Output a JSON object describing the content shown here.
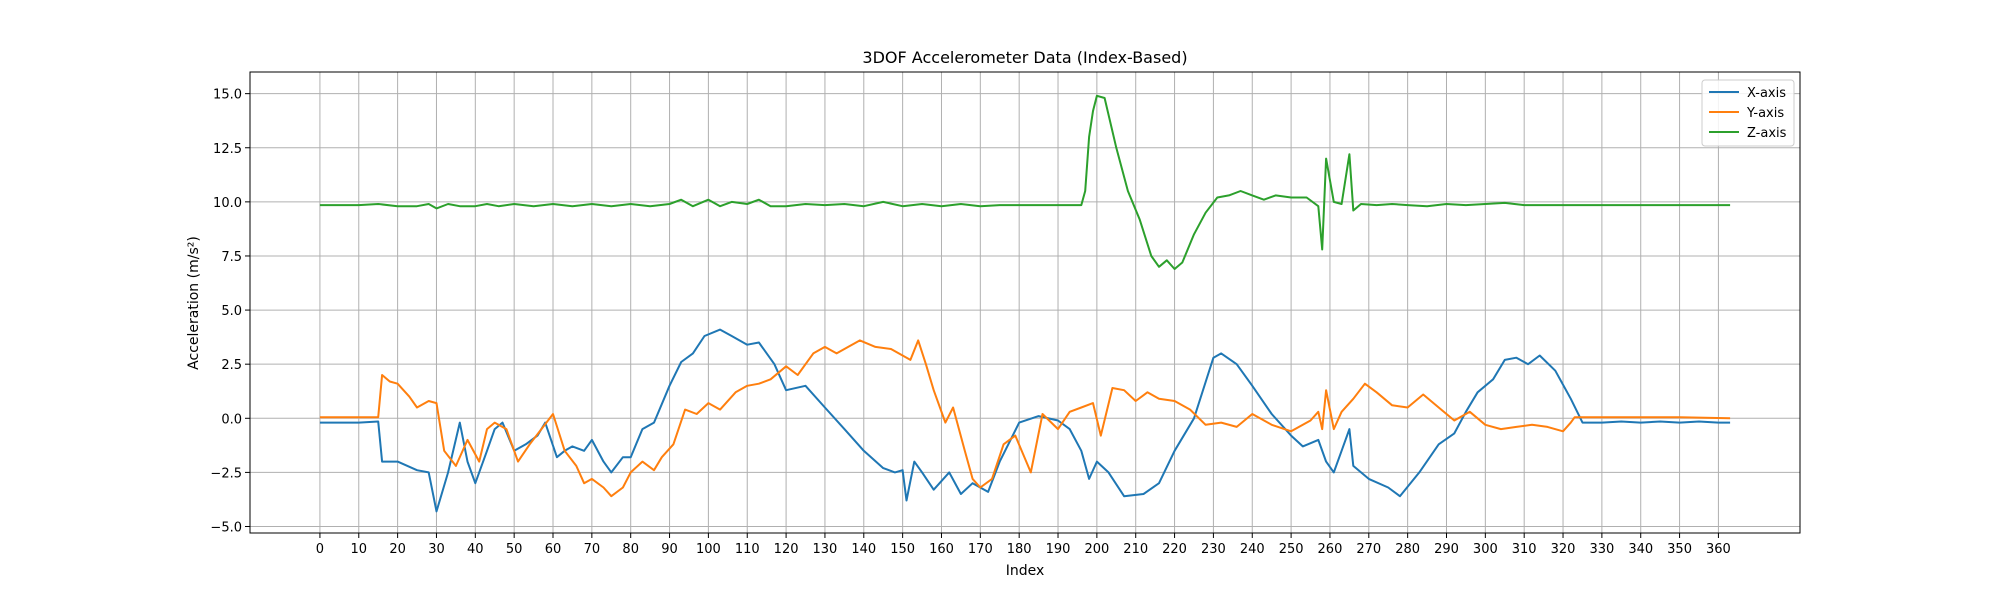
{
  "chart_data": {
    "type": "line",
    "title": "3DOF Accelerometer Data (Index-Based)",
    "xlabel": "Index",
    "ylabel": "Acceleration (m/s²)",
    "xlim": [
      -18,
      381
    ],
    "ylim": [
      -5.3,
      16.0
    ],
    "x_ticks": [
      0,
      10,
      20,
      30,
      40,
      50,
      60,
      70,
      80,
      90,
      100,
      110,
      120,
      130,
      140,
      150,
      160,
      170,
      180,
      190,
      200,
      210,
      220,
      230,
      240,
      250,
      260,
      270,
      280,
      290,
      300,
      310,
      320,
      330,
      340,
      350,
      360
    ],
    "y_ticks": [
      -5.0,
      -2.5,
      0.0,
      2.5,
      5.0,
      7.5,
      10.0,
      12.5,
      15.0
    ],
    "y_tick_labels": [
      "−5.0",
      "−2.5",
      "0.0",
      "2.5",
      "5.0",
      "7.5",
      "10.0",
      "12.5",
      "15.0"
    ],
    "grid": true,
    "legend_position": "upper right",
    "series": [
      {
        "name": "X-axis",
        "color": "#1f77b4",
        "points": [
          [
            0,
            -0.2
          ],
          [
            10,
            -0.2
          ],
          [
            15,
            -0.15
          ],
          [
            16,
            -2.0
          ],
          [
            20,
            -2.0
          ],
          [
            25,
            -2.4
          ],
          [
            28,
            -2.5
          ],
          [
            30,
            -4.3
          ],
          [
            33,
            -2.5
          ],
          [
            36,
            -0.2
          ],
          [
            38,
            -2.0
          ],
          [
            40,
            -3.0
          ],
          [
            43,
            -1.5
          ],
          [
            45,
            -0.5
          ],
          [
            47,
            -0.2
          ],
          [
            50,
            -1.5
          ],
          [
            53,
            -1.2
          ],
          [
            56,
            -0.8
          ],
          [
            58,
            -0.2
          ],
          [
            61,
            -1.8
          ],
          [
            63,
            -1.5
          ],
          [
            65,
            -1.3
          ],
          [
            68,
            -1.5
          ],
          [
            70,
            -1.0
          ],
          [
            73,
            -2.0
          ],
          [
            75,
            -2.5
          ],
          [
            78,
            -1.8
          ],
          [
            80,
            -1.8
          ],
          [
            83,
            -0.5
          ],
          [
            86,
            -0.2
          ],
          [
            90,
            1.5
          ],
          [
            93,
            2.6
          ],
          [
            96,
            3.0
          ],
          [
            99,
            3.8
          ],
          [
            103,
            4.1
          ],
          [
            106,
            3.8
          ],
          [
            110,
            3.4
          ],
          [
            113,
            3.5
          ],
          [
            117,
            2.5
          ],
          [
            120,
            1.3
          ],
          [
            125,
            1.5
          ],
          [
            130,
            0.5
          ],
          [
            135,
            -0.5
          ],
          [
            140,
            -1.5
          ],
          [
            145,
            -2.3
          ],
          [
            148,
            -2.5
          ],
          [
            150,
            -2.4
          ],
          [
            151,
            -3.8
          ],
          [
            153,
            -2.0
          ],
          [
            155,
            -2.5
          ],
          [
            158,
            -3.3
          ],
          [
            162,
            -2.5
          ],
          [
            165,
            -3.5
          ],
          [
            168,
            -3.0
          ],
          [
            172,
            -3.4
          ],
          [
            175,
            -2.0
          ],
          [
            180,
            -0.2
          ],
          [
            185,
            0.1
          ],
          [
            190,
            -0.1
          ],
          [
            193,
            -0.5
          ],
          [
            196,
            -1.5
          ],
          [
            198,
            -2.8
          ],
          [
            200,
            -2.0
          ],
          [
            203,
            -2.5
          ],
          [
            207,
            -3.6
          ],
          [
            212,
            -3.5
          ],
          [
            216,
            -3.0
          ],
          [
            220,
            -1.5
          ],
          [
            225,
            0.0
          ],
          [
            230,
            2.8
          ],
          [
            232,
            3.0
          ],
          [
            236,
            2.5
          ],
          [
            240,
            1.5
          ],
          [
            245,
            0.2
          ],
          [
            250,
            -0.8
          ],
          [
            253,
            -1.3
          ],
          [
            257,
            -1.0
          ],
          [
            259,
            -2.0
          ],
          [
            261,
            -2.5
          ],
          [
            263,
            -1.5
          ],
          [
            265,
            -0.5
          ],
          [
            266,
            -2.2
          ],
          [
            270,
            -2.8
          ],
          [
            275,
            -3.2
          ],
          [
            278,
            -3.6
          ],
          [
            283,
            -2.5
          ],
          [
            288,
            -1.2
          ],
          [
            292,
            -0.7
          ],
          [
            295,
            0.3
          ],
          [
            298,
            1.2
          ],
          [
            302,
            1.8
          ],
          [
            305,
            2.7
          ],
          [
            308,
            2.8
          ],
          [
            311,
            2.5
          ],
          [
            314,
            2.9
          ],
          [
            318,
            2.2
          ],
          [
            322,
            0.9
          ],
          [
            325,
            -0.2
          ],
          [
            330,
            -0.2
          ],
          [
            335,
            -0.15
          ],
          [
            340,
            -0.2
          ],
          [
            345,
            -0.15
          ],
          [
            350,
            -0.2
          ],
          [
            355,
            -0.15
          ],
          [
            360,
            -0.2
          ],
          [
            363,
            -0.2
          ]
        ]
      },
      {
        "name": "Y-axis",
        "color": "#ff7f0e",
        "points": [
          [
            0,
            0.05
          ],
          [
            10,
            0.05
          ],
          [
            15,
            0.05
          ],
          [
            16,
            2.0
          ],
          [
            18,
            1.7
          ],
          [
            20,
            1.6
          ],
          [
            23,
            1.0
          ],
          [
            25,
            0.5
          ],
          [
            28,
            0.8
          ],
          [
            30,
            0.7
          ],
          [
            32,
            -1.5
          ],
          [
            35,
            -2.2
          ],
          [
            38,
            -1.0
          ],
          [
            41,
            -2.0
          ],
          [
            43,
            -0.5
          ],
          [
            45,
            -0.2
          ],
          [
            48,
            -0.5
          ],
          [
            51,
            -2.0
          ],
          [
            54,
            -1.2
          ],
          [
            57,
            -0.5
          ],
          [
            60,
            0.2
          ],
          [
            63,
            -1.5
          ],
          [
            66,
            -2.2
          ],
          [
            68,
            -3.0
          ],
          [
            70,
            -2.8
          ],
          [
            73,
            -3.2
          ],
          [
            75,
            -3.6
          ],
          [
            78,
            -3.2
          ],
          [
            80,
            -2.5
          ],
          [
            83,
            -2.0
          ],
          [
            86,
            -2.4
          ],
          [
            88,
            -1.8
          ],
          [
            91,
            -1.2
          ],
          [
            94,
            0.4
          ],
          [
            97,
            0.2
          ],
          [
            100,
            0.7
          ],
          [
            103,
            0.4
          ],
          [
            107,
            1.2
          ],
          [
            110,
            1.5
          ],
          [
            113,
            1.6
          ],
          [
            116,
            1.8
          ],
          [
            120,
            2.4
          ],
          [
            123,
            2.0
          ],
          [
            127,
            3.0
          ],
          [
            130,
            3.3
          ],
          [
            133,
            3.0
          ],
          [
            136,
            3.3
          ],
          [
            139,
            3.6
          ],
          [
            143,
            3.3
          ],
          [
            147,
            3.2
          ],
          [
            150,
            2.9
          ],
          [
            152,
            2.7
          ],
          [
            154,
            3.6
          ],
          [
            156,
            2.5
          ],
          [
            158,
            1.3
          ],
          [
            161,
            -0.2
          ],
          [
            163,
            0.5
          ],
          [
            166,
            -1.5
          ],
          [
            168,
            -2.8
          ],
          [
            170,
            -3.2
          ],
          [
            173,
            -2.8
          ],
          [
            176,
            -1.2
          ],
          [
            179,
            -0.8
          ],
          [
            183,
            -2.5
          ],
          [
            186,
            0.2
          ],
          [
            190,
            -0.5
          ],
          [
            193,
            0.3
          ],
          [
            196,
            0.5
          ],
          [
            199,
            0.7
          ],
          [
            201,
            -0.8
          ],
          [
            204,
            1.4
          ],
          [
            207,
            1.3
          ],
          [
            210,
            0.8
          ],
          [
            213,
            1.2
          ],
          [
            216,
            0.9
          ],
          [
            220,
            0.8
          ],
          [
            224,
            0.4
          ],
          [
            228,
            -0.3
          ],
          [
            232,
            -0.2
          ],
          [
            236,
            -0.4
          ],
          [
            240,
            0.2
          ],
          [
            245,
            -0.3
          ],
          [
            250,
            -0.6
          ],
          [
            255,
            -0.1
          ],
          [
            257,
            0.3
          ],
          [
            258,
            -0.5
          ],
          [
            259,
            1.3
          ],
          [
            261,
            -0.5
          ],
          [
            263,
            0.3
          ],
          [
            266,
            0.9
          ],
          [
            269,
            1.6
          ],
          [
            272,
            1.2
          ],
          [
            276,
            0.6
          ],
          [
            280,
            0.5
          ],
          [
            284,
            1.1
          ],
          [
            288,
            0.5
          ],
          [
            292,
            -0.1
          ],
          [
            296,
            0.3
          ],
          [
            300,
            -0.3
          ],
          [
            304,
            -0.5
          ],
          [
            308,
            -0.4
          ],
          [
            312,
            -0.3
          ],
          [
            316,
            -0.4
          ],
          [
            320,
            -0.6
          ],
          [
            322,
            -0.2
          ],
          [
            323,
            0.05
          ],
          [
            330,
            0.05
          ],
          [
            340,
            0.05
          ],
          [
            350,
            0.05
          ],
          [
            363,
            0.0
          ]
        ]
      },
      {
        "name": "Z-axis",
        "color": "#2ca02c",
        "points": [
          [
            0,
            9.85
          ],
          [
            10,
            9.85
          ],
          [
            15,
            9.9
          ],
          [
            20,
            9.8
          ],
          [
            25,
            9.8
          ],
          [
            28,
            9.9
          ],
          [
            30,
            9.7
          ],
          [
            33,
            9.9
          ],
          [
            36,
            9.8
          ],
          [
            40,
            9.8
          ],
          [
            43,
            9.9
          ],
          [
            46,
            9.8
          ],
          [
            50,
            9.9
          ],
          [
            55,
            9.8
          ],
          [
            60,
            9.9
          ],
          [
            65,
            9.8
          ],
          [
            70,
            9.9
          ],
          [
            75,
            9.8
          ],
          [
            80,
            9.9
          ],
          [
            85,
            9.8
          ],
          [
            90,
            9.9
          ],
          [
            93,
            10.1
          ],
          [
            96,
            9.8
          ],
          [
            100,
            10.1
          ],
          [
            103,
            9.8
          ],
          [
            106,
            10.0
          ],
          [
            110,
            9.9
          ],
          [
            113,
            10.1
          ],
          [
            116,
            9.8
          ],
          [
            120,
            9.8
          ],
          [
            125,
            9.9
          ],
          [
            130,
            9.85
          ],
          [
            135,
            9.9
          ],
          [
            140,
            9.8
          ],
          [
            145,
            10.0
          ],
          [
            150,
            9.8
          ],
          [
            155,
            9.9
          ],
          [
            160,
            9.8
          ],
          [
            165,
            9.9
          ],
          [
            170,
            9.8
          ],
          [
            175,
            9.85
          ],
          [
            180,
            9.85
          ],
          [
            190,
            9.85
          ],
          [
            196,
            9.85
          ],
          [
            197,
            10.5
          ],
          [
            198,
            13.0
          ],
          [
            199,
            14.2
          ],
          [
            200,
            14.9
          ],
          [
            202,
            14.8
          ],
          [
            205,
            12.5
          ],
          [
            208,
            10.5
          ],
          [
            211,
            9.2
          ],
          [
            214,
            7.5
          ],
          [
            216,
            7.0
          ],
          [
            218,
            7.3
          ],
          [
            220,
            6.9
          ],
          [
            222,
            7.2
          ],
          [
            225,
            8.5
          ],
          [
            228,
            9.5
          ],
          [
            231,
            10.2
          ],
          [
            234,
            10.3
          ],
          [
            237,
            10.5
          ],
          [
            240,
            10.3
          ],
          [
            243,
            10.1
          ],
          [
            246,
            10.3
          ],
          [
            250,
            10.2
          ],
          [
            254,
            10.2
          ],
          [
            257,
            9.8
          ],
          [
            258,
            7.8
          ],
          [
            259,
            12.0
          ],
          [
            261,
            10.0
          ],
          [
            263,
            9.9
          ],
          [
            265,
            12.2
          ],
          [
            266,
            9.6
          ],
          [
            268,
            9.9
          ],
          [
            272,
            9.85
          ],
          [
            276,
            9.9
          ],
          [
            280,
            9.85
          ],
          [
            285,
            9.8
          ],
          [
            290,
            9.9
          ],
          [
            295,
            9.85
          ],
          [
            300,
            9.9
          ],
          [
            305,
            9.95
          ],
          [
            310,
            9.85
          ],
          [
            320,
            9.85
          ],
          [
            330,
            9.85
          ],
          [
            340,
            9.85
          ],
          [
            350,
            9.85
          ],
          [
            363,
            9.85
          ]
        ]
      }
    ]
  }
}
